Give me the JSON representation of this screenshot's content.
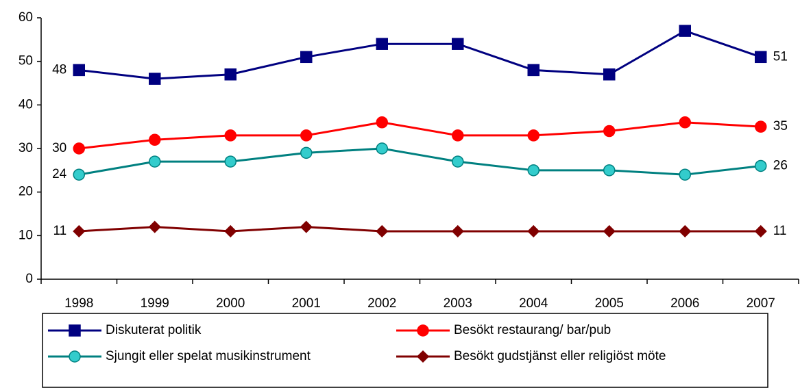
{
  "chart_data": {
    "type": "line",
    "categories": [
      "1998",
      "1999",
      "2000",
      "2001",
      "2002",
      "2003",
      "2004",
      "2005",
      "2006",
      "2007"
    ],
    "series": [
      {
        "name": "Diskuterat politik",
        "color": "#000080",
        "marker": "square",
        "values": [
          48,
          46,
          47,
          51,
          54,
          54,
          48,
          47,
          57,
          51
        ]
      },
      {
        "name": "Besökt restaurang/ bar/pub",
        "color": "#ff0000",
        "marker": "circle",
        "values": [
          30,
          32,
          33,
          33,
          36,
          33,
          33,
          34,
          36,
          35
        ]
      },
      {
        "name": "Sjungit eller spelat musikinstrument",
        "color": "#008080",
        "marker_fill": "#33cccc",
        "marker": "circle",
        "values": [
          24,
          27,
          27,
          29,
          30,
          27,
          25,
          25,
          24,
          26
        ]
      },
      {
        "name": "Besökt gudstjänst eller religiöst möte",
        "color": "#800000",
        "marker": "diamond",
        "values": [
          11,
          12,
          11,
          12,
          11,
          11,
          11,
          11,
          11,
          11
        ]
      }
    ],
    "ylim": [
      0,
      60
    ],
    "yticks": [
      0,
      10,
      20,
      30,
      40,
      50,
      60
    ],
    "grid": false,
    "legend": "bottom"
  }
}
